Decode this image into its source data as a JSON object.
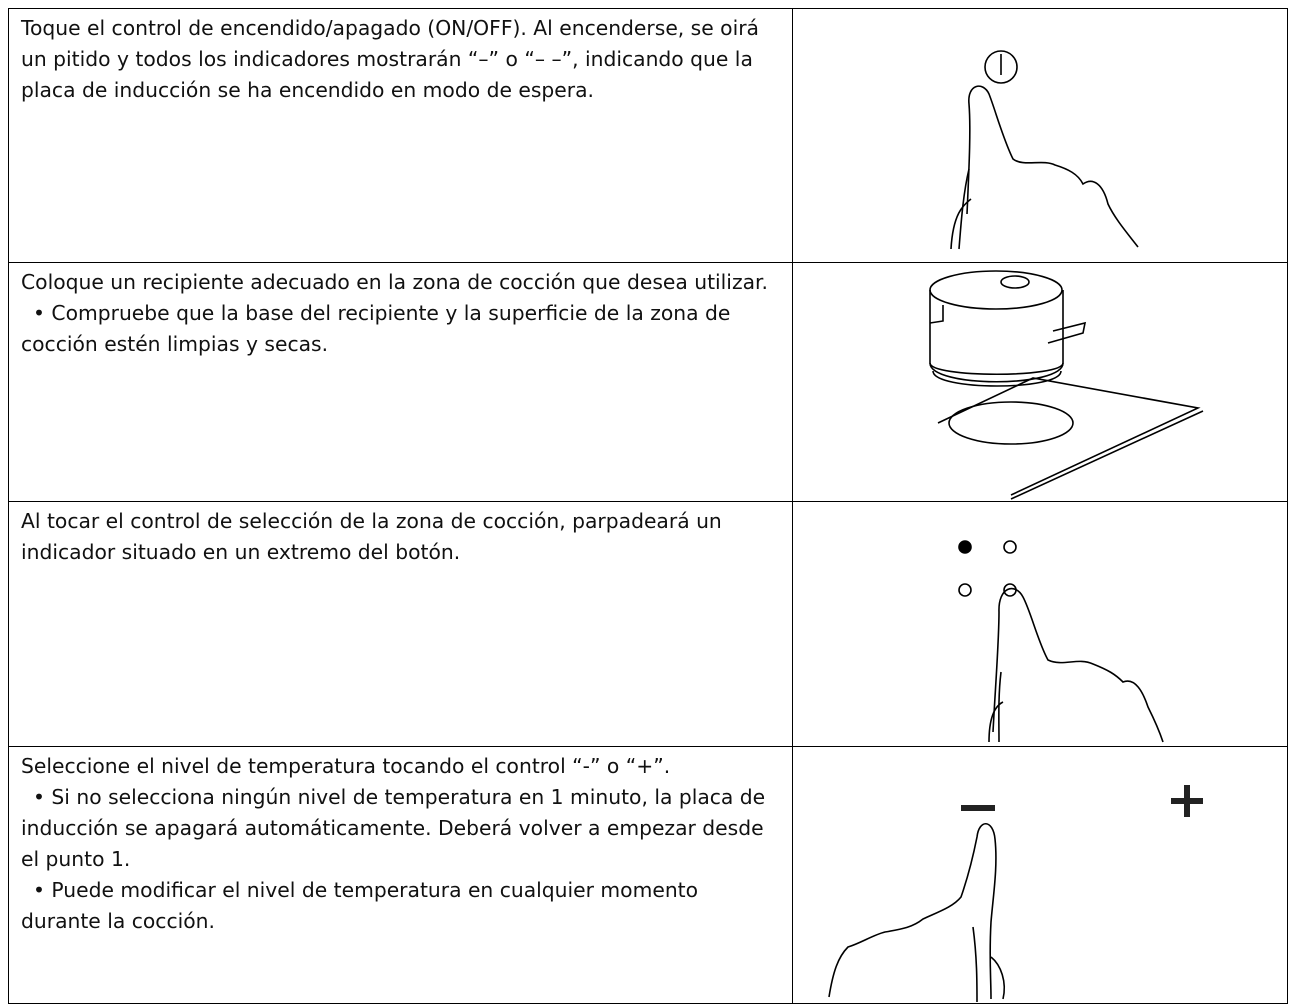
{
  "table": {
    "rows": [
      {
        "paragraphs": [
          "Toque el control de encendido/apagado (ON/OFF). Al encenderse, se oirá un pitido y todos los indicadores mostrarán “–” o “– –”, indicando que la placa de inducción se ha encendido en modo de espera."
        ]
      },
      {
        "paragraphs": [
          "Coloque un recipiente adecuado en la zona de cocción que desea utilizar.",
          "• Compruebe que la base del recipiente y la superficie de la zona de cocción estén limpias y secas."
        ]
      },
      {
        "paragraphs": [
          "Al tocar el control de selección de la zona de cocción, parpadeará un indicador situado en un extremo del botón."
        ]
      },
      {
        "paragraphs": [
          "Seleccione el nivel de temperatura tocando el control “-” o “+”.",
          "• Si no selecciona ningún nivel de temperatura en 1 minuto, la placa de inducción se apagará automáticamente. Deberá volver a empezar desde el punto 1.",
          "• Puede modificar el nivel de temperatura en cualquier momento durante la cocción."
        ]
      }
    ]
  }
}
